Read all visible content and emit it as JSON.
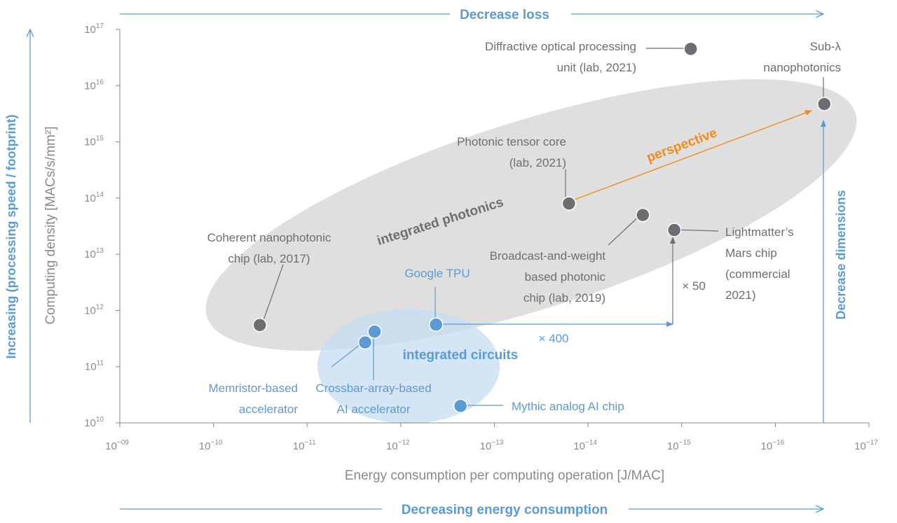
{
  "chart_data": {
    "type": "scatter",
    "xscale": "log",
    "yscale": "log",
    "x_axis_reversed": true,
    "xlim": [
      1e-09,
      1e-17
    ],
    "ylim": [
      10000000000.0,
      1e+17
    ],
    "xlabel": "Energy consumption per computing operation [J/MAC]",
    "ylabel": "Computing density [MACs/s/mm²]",
    "x_ticks": [
      {
        "base": "10",
        "exp": "−09",
        "value": 1e-09
      },
      {
        "base": "10",
        "exp": "−10",
        "value": 1e-10
      },
      {
        "base": "10",
        "exp": "−11",
        "value": 1e-11
      },
      {
        "base": "10",
        "exp": "−12",
        "value": 1e-12
      },
      {
        "base": "10",
        "exp": "−13",
        "value": 1e-13
      },
      {
        "base": "10",
        "exp": "−14",
        "value": 1e-14
      },
      {
        "base": "10",
        "exp": "−15",
        "value": 1e-15
      },
      {
        "base": "10",
        "exp": "−16",
        "value": 1e-16
      },
      {
        "base": "10",
        "exp": "−17",
        "value": 1e-17
      }
    ],
    "y_ticks": [
      {
        "base": "10",
        "exp": "10",
        "value": 10000000000.0
      },
      {
        "base": "10",
        "exp": "11",
        "value": 100000000000.0
      },
      {
        "base": "10",
        "exp": "12",
        "value": 1000000000000.0
      },
      {
        "base": "10",
        "exp": "13",
        "value": 10000000000000.0
      },
      {
        "base": "10",
        "exp": "14",
        "value": 100000000000000.0
      },
      {
        "base": "10",
        "exp": "15",
        "value": 1000000000000000.0
      },
      {
        "base": "10",
        "exp": "16",
        "value": 1e+16
      },
      {
        "base": "10",
        "exp": "17",
        "value": 1e+17
      }
    ],
    "series": [
      {
        "color": "#6d6e71",
        "points": [
          {
            "label": [
              "Coherent nanophotonic",
              "chip (lab, 2017)"
            ],
            "x": 3.2e-11,
            "y": 550000000000.0
          },
          {
            "label": [
              "Photonic tensor core",
              "(lab, 2021)"
            ],
            "x": 1.6e-14,
            "y": 80000000000000.0
          },
          {
            "label": [
              "Broadcast-and-weight",
              "based photonic",
              "chip (lab, 2019)"
            ],
            "x": 2.6e-15,
            "y": 50000000000000.0
          },
          {
            "label": [
              "Lightmatter’s",
              "Mars chip",
              "(commercial",
              "2021)"
            ],
            "x": 1.2e-15,
            "y": 27000000000000.0
          },
          {
            "label": [
              "Diffractive optical processing",
              "unit (lab, 2021)"
            ],
            "x": 8e-16,
            "y": 4.5e+16
          },
          {
            "label": [
              "Sub-λ",
              "nanophotonics"
            ],
            "x": 3e-17,
            "y": 4700000000000000.0
          }
        ]
      },
      {
        "color": "#5b9bd5",
        "points": [
          {
            "label": [
              "Memristor-based",
              "accelerator"
            ],
            "x": 2.4e-12,
            "y": 270000000000.0
          },
          {
            "label": [
              "Crossbar-array-based",
              "AI accelerator"
            ],
            "x": 1.9e-12,
            "y": 420000000000.0
          },
          {
            "label": [
              "Google TPU"
            ],
            "x": 4.2e-13,
            "y": 560000000000.0
          },
          {
            "label": [
              "Mythic analog AI chip"
            ],
            "x": 2.3e-13,
            "y": 20000000000.0
          }
        ]
      }
    ],
    "regions": [
      {
        "label": "integrated photonics",
        "color": "#d9d9da"
      },
      {
        "label": "integrated circuits",
        "color": "#c6dcf2"
      }
    ],
    "annotations": {
      "perspective": "perspective",
      "factor_400": "× 400",
      "factor_50": "× 50"
    },
    "arrows": {
      "top": "Decrease loss",
      "bottom": "Decreasing energy consumption",
      "left": "Increasing (processing speed / footprint)",
      "right": "Decrease dimensions"
    },
    "colors": {
      "axis": "#8a8a8a",
      "tick_text": "#8a8a8a",
      "label_text": "#6d6e71",
      "blue": "#5b9bd5",
      "orange": "#f08c1e",
      "photonics_region": "#d9d9da",
      "circuits_region": "#c6dcf2"
    }
  }
}
